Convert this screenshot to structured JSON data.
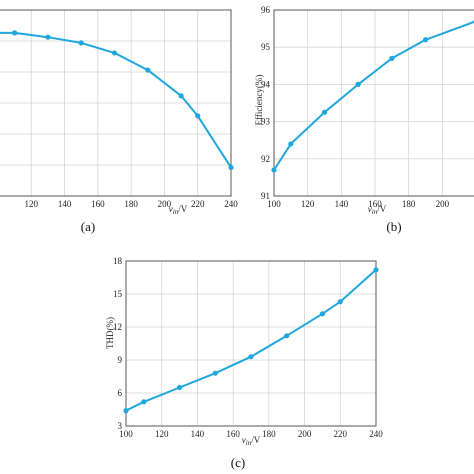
{
  "colors": {
    "series": "#1ea6dd",
    "grid": "#d4d4d4",
    "frame": "#555555"
  },
  "chart_data": [
    {
      "type": "line",
      "panel_label": "(a)",
      "xlabel": "v_in/V",
      "ylabel": "",
      "xlim": [
        100,
        240
      ],
      "ylim": [
        0.935,
        1.0
      ],
      "xticks": [
        "120",
        "140",
        "160",
        "180",
        "200",
        "220",
        "240"
      ],
      "grid": true,
      "series": [
        {
          "x": [
            100,
            110,
            130,
            150,
            170,
            190,
            210,
            220,
            240
          ],
          "y": [
            0.992,
            0.992,
            0.9905,
            0.9885,
            0.985,
            0.979,
            0.97,
            0.963,
            0.945
          ]
        }
      ]
    },
    {
      "type": "line",
      "panel_label": "(b)",
      "xlabel": "v_in/V",
      "ylabel": "Efficiency(%)",
      "xlim": [
        100,
        220
      ],
      "ylim": [
        91,
        96
      ],
      "xticks": [
        "100",
        "120",
        "140",
        "160",
        "180",
        "200"
      ],
      "yticks": [
        "91",
        "92",
        "93",
        "94",
        "95",
        "96"
      ],
      "grid": true,
      "series": [
        {
          "x": [
            100,
            110,
            130,
            150,
            170,
            190,
            220
          ],
          "y": [
            91.7,
            92.4,
            93.25,
            94.0,
            94.7,
            95.2,
            95.7
          ]
        }
      ]
    },
    {
      "type": "line",
      "panel_label": "(c)",
      "xlabel": "v_in/V",
      "ylabel": "THD(%)",
      "xlim": [
        100,
        240
      ],
      "ylim": [
        3,
        18
      ],
      "xticks": [
        "100",
        "120",
        "140",
        "160",
        "180",
        "200",
        "220",
        "240"
      ],
      "yticks": [
        "3",
        "6",
        "9",
        "12",
        "15",
        "18"
      ],
      "grid": true,
      "series": [
        {
          "x": [
            100,
            110,
            130,
            150,
            170,
            190,
            210,
            220,
            240
          ],
          "y": [
            4.4,
            5.2,
            6.5,
            7.8,
            9.3,
            11.2,
            13.2,
            14.3,
            17.2
          ]
        }
      ]
    }
  ]
}
